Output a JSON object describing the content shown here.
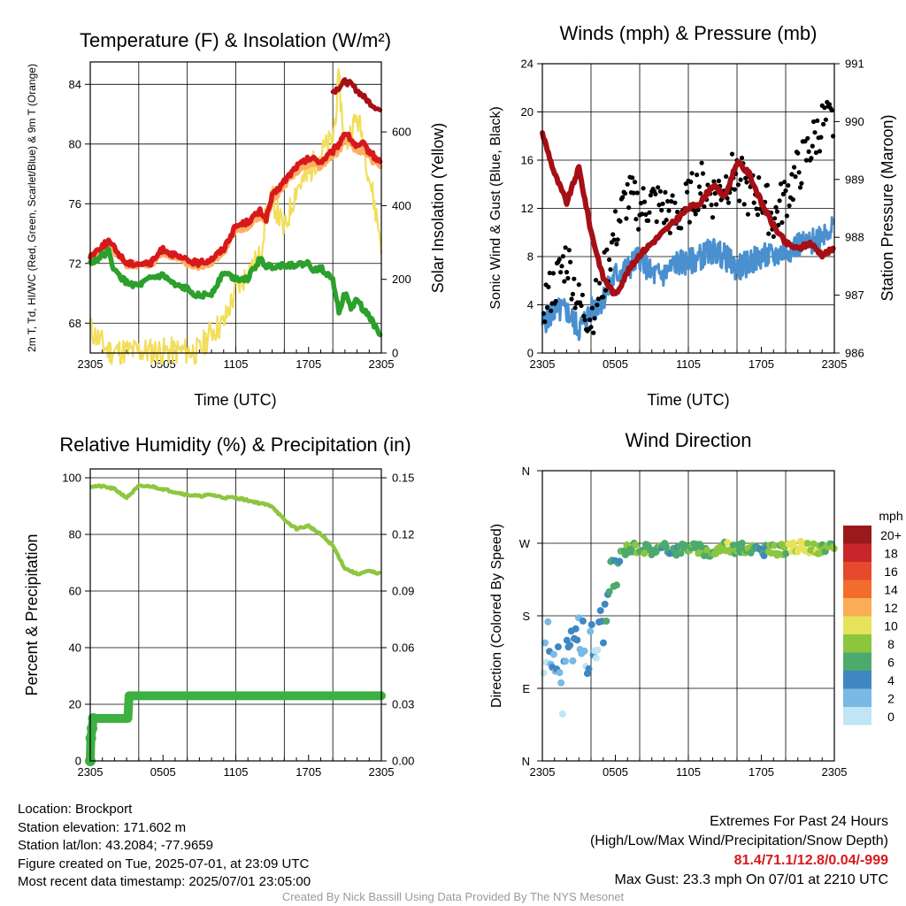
{
  "chart_data": [
    {
      "type": "line",
      "title": "Temperature (F) & Insolation (W/m²)",
      "xlabel": "Time (UTC)",
      "ylabel_left": "2m T, Td, HI/WC (Red, Green, Scarlet/Blue) & 9m T (Orange)",
      "ylabel_right": "Solar Insolation (Yellow)",
      "x_ticks": [
        "2305",
        "0505",
        "1105",
        "1705",
        "2305"
      ],
      "y_left_ticks": [
        68,
        72,
        76,
        80,
        84
      ],
      "y_right_ticks": [
        0,
        200,
        400,
        600
      ],
      "ylim_left": [
        66,
        85.5
      ],
      "ylim_right": [
        0,
        790
      ],
      "x_hours": [
        0,
        1.5,
        2,
        3,
        4,
        5,
        6,
        7,
        8,
        9,
        10,
        11,
        12,
        13,
        14,
        14.5,
        15,
        16,
        17,
        18,
        18.5,
        19,
        20,
        20.5,
        21,
        21.5,
        22,
        22.5,
        23,
        24
      ],
      "series": [
        {
          "name": "2m T",
          "color": "#d7191c",
          "values": [
            72.5,
            73.5,
            73,
            72,
            72,
            72,
            73,
            72.5,
            72.2,
            72,
            72.3,
            73,
            74.5,
            74.8,
            75.5,
            75,
            76.5,
            77.5,
            78.5,
            79,
            79,
            78.8,
            79.5,
            80,
            80.8,
            80.3,
            79.8,
            80,
            79.5,
            78.7
          ]
        },
        {
          "name": "9m T",
          "color": "#fdae61",
          "values": [
            72.4,
            73.3,
            72.8,
            71.9,
            71.9,
            71.9,
            72.8,
            72.3,
            72,
            71.8,
            72.1,
            72.8,
            74.2,
            74.5,
            75.2,
            74.8,
            76.2,
            77.2,
            78.2,
            78.7,
            78.6,
            78.5,
            79.2,
            79.6,
            80.4,
            80,
            79.5,
            79.6,
            79.1,
            78.4
          ]
        },
        {
          "name": "Td",
          "color": "#2ca02c",
          "values": [
            72,
            72.8,
            71.5,
            70.7,
            70.5,
            71,
            71.2,
            70.5,
            70.3,
            69.8,
            70,
            71.4,
            71,
            71,
            72.3,
            71.8,
            71.8,
            71.9,
            71.9,
            72,
            71.5,
            71.7,
            71,
            68.8,
            70,
            69,
            69.6,
            68.9,
            68.5,
            67
          ]
        },
        {
          "name": "HI/WC",
          "color": "#a50f15",
          "values": [
            null,
            null,
            null,
            null,
            null,
            null,
            null,
            null,
            null,
            null,
            null,
            null,
            null,
            null,
            null,
            null,
            null,
            null,
            null,
            null,
            null,
            null,
            83.5,
            83.8,
            84.2,
            84,
            83.6,
            83.2,
            82.8,
            82.2
          ]
        },
        {
          "name": "Solar Insolation",
          "color": "#f2de5c",
          "values": [
            65,
            5,
            5,
            5,
            5,
            5,
            5,
            5,
            5,
            5,
            60,
            80,
            170,
            220,
            260,
            380,
            420,
            330,
            450,
            480,
            520,
            540,
            580,
            740,
            560,
            600,
            640,
            580,
            480,
            300
          ]
        }
      ]
    },
    {
      "type": "line",
      "title": "Winds (mph) & Pressure (mb)",
      "xlabel": "Time (UTC)",
      "ylabel_left": "Sonic Wind & Gust (Blue, Black)",
      "ylabel_right": "Station Pressure (Maroon)",
      "x_ticks": [
        "2305",
        "0505",
        "1105",
        "1705",
        "2305"
      ],
      "y_left_ticks": [
        0,
        4,
        8,
        12,
        16,
        20,
        24
      ],
      "y_right_ticks": [
        986,
        987,
        988,
        989,
        990,
        991
      ],
      "ylim_left": [
        0,
        24
      ],
      "ylim_right": [
        986,
        991
      ],
      "x_hours": [
        0,
        1,
        2,
        3,
        4,
        5,
        6,
        7,
        8,
        9,
        10,
        11,
        12,
        13,
        14,
        15,
        16,
        17,
        18,
        19,
        20,
        21,
        22,
        23,
        24
      ],
      "series": [
        {
          "name": "Sonic Wind",
          "color": "#4a90cf",
          "values": [
            2.5,
            3.5,
            3.5,
            2,
            3.5,
            4.5,
            6.5,
            7,
            8,
            6.5,
            6.5,
            7.5,
            7.5,
            8,
            8.5,
            8,
            7,
            7.5,
            8,
            8,
            8.5,
            9,
            9,
            10,
            10.5
          ]
        },
        {
          "name": "Gust",
          "color": "#000000",
          "values": [
            4,
            5.5,
            8,
            4,
            3,
            6,
            10,
            13,
            12,
            12.5,
            12,
            11,
            12.5,
            14,
            13,
            14,
            15,
            13,
            13,
            11,
            13,
            15,
            17,
            19,
            19
          ]
        },
        {
          "name": "Station Pressure",
          "color": "#a50f15",
          "values": [
            989.8,
            989.1,
            988.6,
            989.2,
            988.1,
            987.3,
            987,
            987.4,
            987.7,
            987.9,
            988.1,
            988.3,
            988.5,
            988.6,
            988.9,
            988.7,
            989.3,
            989.1,
            988.6,
            988.2,
            987.9,
            987.8,
            987.9,
            987.7,
            987.8
          ]
        }
      ]
    },
    {
      "type": "line",
      "title": "Relative Humidity (%) & Precipitation (in)",
      "xlabel": "",
      "ylabel_left": "Percent & Precipitation",
      "x_ticks": [
        "2305",
        "0505",
        "1105",
        "1705",
        "2305"
      ],
      "y_left_ticks": [
        0,
        20,
        40,
        60,
        80,
        100
      ],
      "y_right_ticks": [
        "0.00",
        "0.03",
        "0.06",
        "0.09",
        "0.12",
        "0.15"
      ],
      "ylim_left": [
        0,
        100
      ],
      "x_hours": [
        0,
        1,
        2,
        3,
        4,
        5,
        6,
        7,
        8,
        9,
        10,
        11,
        12,
        13,
        14,
        15,
        16,
        17,
        18,
        19,
        20,
        21,
        22,
        23,
        24
      ],
      "series": [
        {
          "name": "Relative Humidity",
          "color": "#8dc63f",
          "values": [
            97,
            97,
            96,
            93,
            97,
            97,
            96,
            95,
            94,
            93.5,
            94,
            93,
            93,
            92,
            91,
            90,
            85,
            82,
            83,
            80,
            76,
            68,
            66,
            67,
            66
          ]
        },
        {
          "name": "Precipitation",
          "color": "#3cb043",
          "x": [
            0,
            0.05,
            0.15,
            0.25,
            3.1,
            3.2,
            24
          ],
          "values": [
            0,
            8,
            11.5,
            15,
            15,
            23,
            23
          ]
        }
      ]
    },
    {
      "type": "scatter",
      "title": "Wind Direction",
      "xlabel": "",
      "ylabel_left": "Direction (Colored By Speed)",
      "x_ticks": [
        "2305",
        "0505",
        "1105",
        "1705",
        "2305"
      ],
      "y_ticks": [
        "N",
        "E",
        "S",
        "W",
        "N"
      ],
      "ylim": [
        0,
        360
      ],
      "x_hours": [
        0,
        0.4,
        0.8,
        1.2,
        1.6,
        2.0,
        2.4,
        3.2,
        3.6,
        4.0,
        4.4,
        4.8,
        5.2,
        5.6,
        6.0,
        6.4,
        7,
        8,
        9,
        10,
        11,
        12,
        13,
        14,
        15,
        16,
        17,
        18,
        19,
        20,
        21,
        22,
        23,
        24
      ],
      "directions": [
        90,
        160,
        110,
        140,
        75,
        120,
        150,
        160,
        120,
        150,
        140,
        170,
        180,
        220,
        230,
        255,
        265,
        265,
        262,
        264,
        262,
        266,
        262,
        258,
        268,
        262,
        265,
        260,
        262,
        262,
        266,
        264,
        262,
        264
      ],
      "speeds": [
        1,
        2,
        2,
        3,
        1,
        4,
        4,
        3,
        2,
        4,
        1,
        3,
        4,
        5,
        5,
        6,
        7,
        7,
        6,
        6,
        5,
        7,
        6,
        7,
        8,
        6,
        7,
        5,
        7,
        8,
        10,
        9,
        8,
        7
      ],
      "legend": {
        "title": "mph",
        "labels": [
          "20+",
          "18",
          "16",
          "14",
          "12",
          "10",
          "8",
          "6",
          "4",
          "2",
          "0"
        ],
        "colors": [
          "#99191c",
          "#c8262b",
          "#e44a2b",
          "#f26c2e",
          "#fbac57",
          "#e6e25a",
          "#8cc63f",
          "#4caa6c",
          "#3f87c2",
          "#7ab9e4",
          "#bfe5f6"
        ]
      }
    }
  ],
  "info": {
    "location": "Location: Brockport",
    "elevation": "Station elevation: 171.602 m",
    "latlon": "Station lat/lon: 43.2084; -77.9659",
    "created": "Figure created on Tue, 2025-07-01, at 23:09 UTC",
    "recent": "Most recent data timestamp: 2025/07/01 23:05:00"
  },
  "extremes": {
    "heading": "Extremes For Past 24 Hours",
    "subheading": "(High/Low/Max Wind/Precipitation/Snow Depth)",
    "values": "81.4/71.1/12.8/0.04/-999",
    "gust": "Max Gust: 23.3 mph On 07/01 at 2210 UTC",
    "color": "#d7191c"
  },
  "credit": "Created By Nick Bassill Using Data Provided By The NYS Mesonet"
}
